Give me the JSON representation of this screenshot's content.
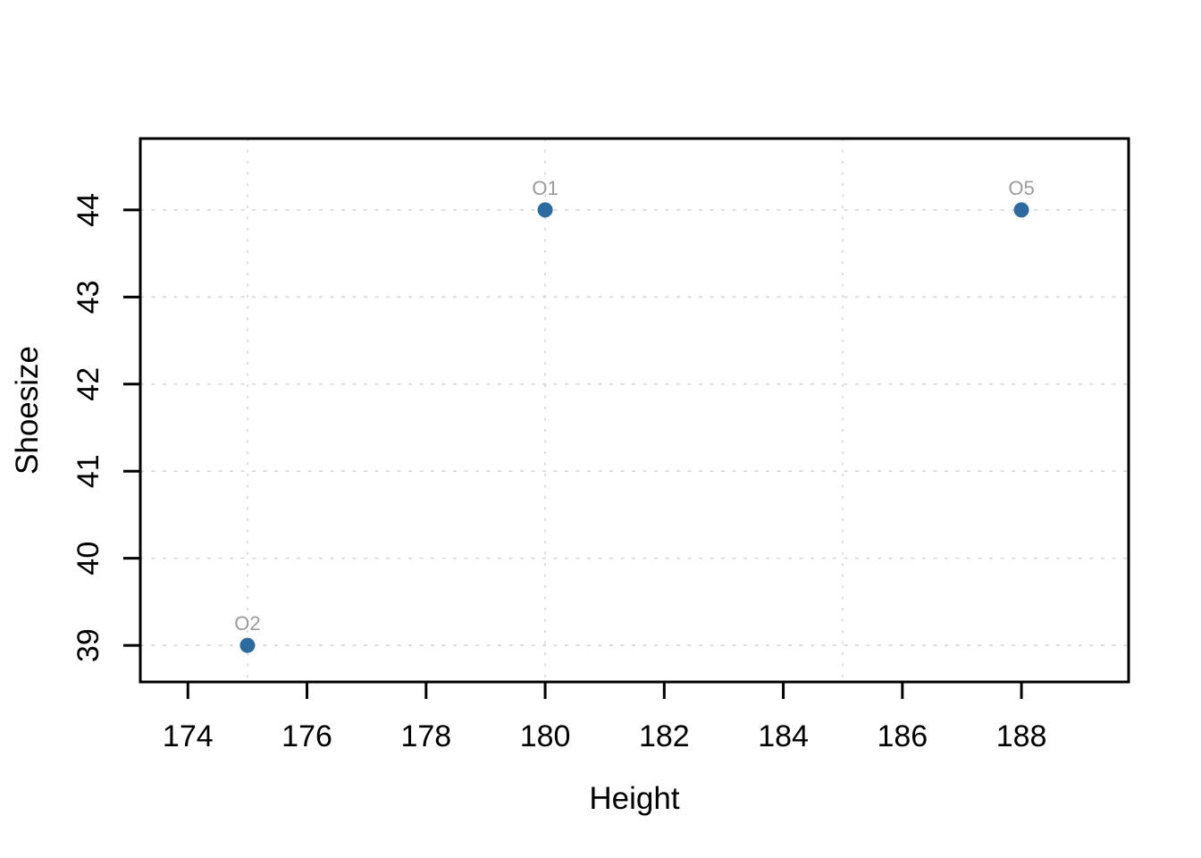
{
  "chart_data": {
    "type": "scatter",
    "title": "",
    "xlabel": "Height",
    "ylabel": "Shoesize",
    "x_ticks": [
      174,
      176,
      178,
      180,
      182,
      184,
      186,
      188
    ],
    "y_ticks": [
      39,
      40,
      41,
      42,
      43,
      44
    ],
    "xlim": [
      173.2,
      189.8
    ],
    "ylim": [
      38.58,
      44.82
    ],
    "grid": {
      "style": "dashed",
      "color": "#d9d9d9",
      "vertical_x": [
        175,
        180,
        185
      ],
      "horizontal_y": [
        39,
        40,
        41,
        42,
        43,
        44
      ]
    },
    "points": [
      {
        "label": "O1",
        "x": 180,
        "y": 44
      },
      {
        "label": "O2",
        "x": 175,
        "y": 39
      },
      {
        "label": "O5",
        "x": 188,
        "y": 44
      }
    ],
    "legend": null,
    "colors": {
      "point_fill": "#2c6aa0",
      "point_label": "#9b9b9b",
      "axis": "#000000",
      "tick_label": "#000000",
      "background": "#ffffff"
    }
  }
}
